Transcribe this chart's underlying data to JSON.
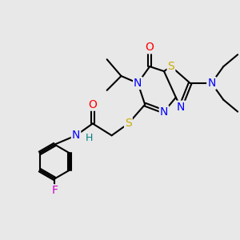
{
  "bg_color": "#e8e8e8",
  "atom_colors": {
    "C": "#000000",
    "N": "#0000ff",
    "O": "#ff0000",
    "S": "#ccaa00",
    "F": "#cc00cc",
    "H": "#008080"
  },
  "bond_color": "#000000",
  "bond_width": 1.5
}
